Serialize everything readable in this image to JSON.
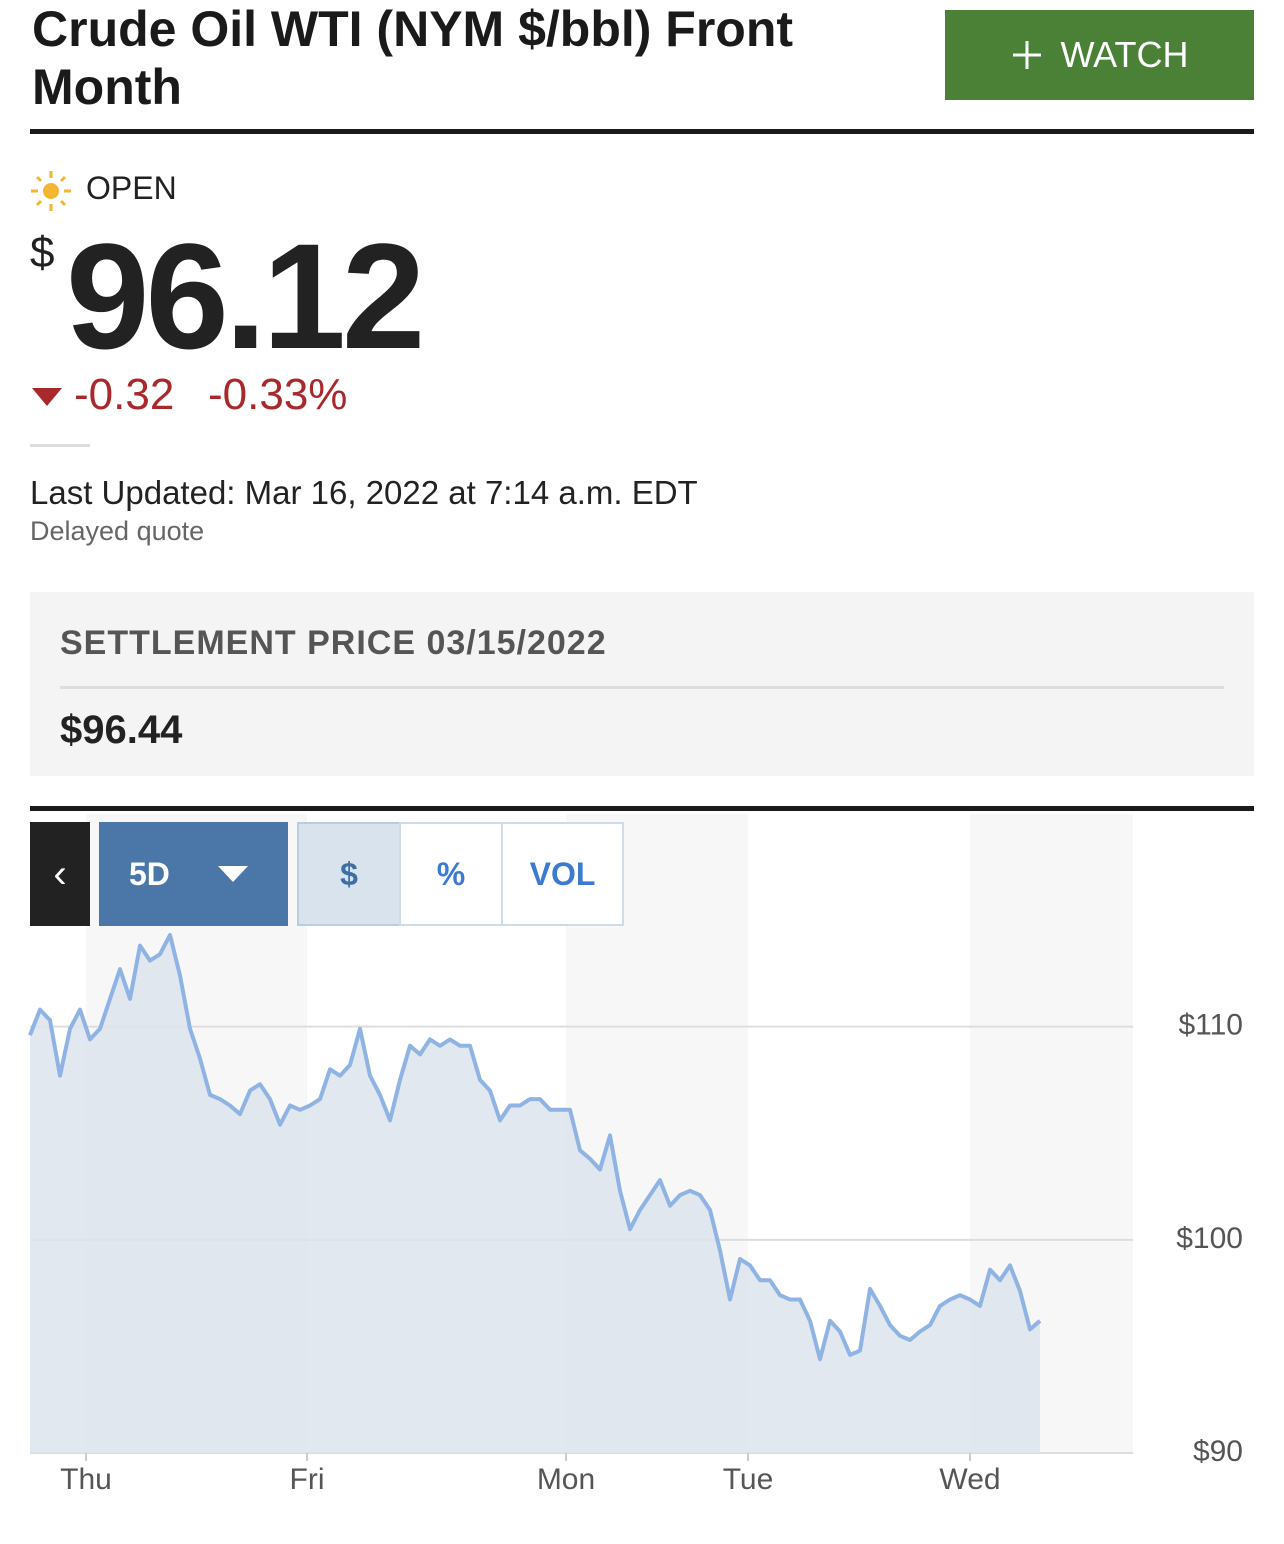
{
  "header": {
    "title": "Crude Oil WTI (NYM $/bbl) Front Month",
    "watch": "WATCH"
  },
  "quote": {
    "status": "OPEN",
    "currency": "$",
    "price": "96.12",
    "change": "-0.32",
    "change_percent": "-0.33%",
    "last_updated": "Last Updated: Mar 16, 2022 at 7:14 a.m. EDT",
    "note": "Delayed quote"
  },
  "settlement": {
    "label": "SETTLEMENT PRICE 03/15/2022",
    "value": "$96.44"
  },
  "controls": {
    "back": "‹",
    "range": "5D",
    "modes": [
      "$",
      "%",
      "VOL"
    ]
  },
  "chart_data": {
    "type": "line",
    "color": "#8fb3e3",
    "area": true,
    "grid": true,
    "x": [
      0,
      1,
      2,
      3,
      4,
      5,
      6,
      7,
      8,
      9,
      10,
      11,
      12,
      13,
      14,
      15,
      16,
      17,
      18,
      19,
      20,
      21,
      22,
      23,
      24,
      25,
      26,
      27,
      28,
      29,
      30,
      31,
      32,
      33,
      34,
      35,
      36,
      37,
      38,
      39,
      40,
      41,
      42,
      43,
      44,
      45,
      46,
      47,
      48,
      49,
      50,
      51,
      52,
      53,
      54,
      55,
      56,
      57,
      58,
      59,
      60,
      61,
      62,
      63,
      64,
      65,
      66,
      67,
      68,
      69,
      70,
      71,
      72,
      73,
      74,
      75,
      76,
      77,
      78,
      79,
      80,
      81,
      82,
      83,
      84,
      85,
      86,
      87,
      88,
      89,
      90,
      91,
      92,
      93,
      94,
      95,
      96,
      97,
      98,
      99,
      100,
      101
    ],
    "values": [
      109.6,
      110.8,
      110.3,
      107.7,
      109.9,
      110.8,
      109.4,
      109.9,
      111.3,
      112.7,
      111.3,
      113.8,
      113.1,
      113.4,
      114.3,
      112.4,
      109.9,
      108.5,
      106.8,
      106.6,
      106.3,
      105.9,
      107.0,
      107.3,
      106.6,
      105.4,
      106.3,
      106.1,
      106.3,
      106.6,
      108.0,
      107.7,
      108.2,
      109.9,
      107.7,
      106.8,
      105.6,
      107.5,
      109.1,
      108.7,
      109.4,
      109.1,
      109.4,
      109.1,
      109.1,
      107.5,
      107.0,
      105.6,
      106.3,
      106.3,
      106.6,
      106.6,
      106.1,
      106.1,
      106.1,
      104.2,
      103.8,
      103.3,
      104.9,
      102.3,
      100.5,
      101.4,
      102.1,
      102.8,
      101.6,
      102.1,
      102.3,
      102.1,
      101.4,
      99.5,
      97.2,
      99.1,
      98.8,
      98.1,
      98.1,
      97.4,
      97.2,
      97.2,
      96.2,
      94.4,
      96.2,
      95.7,
      94.6,
      94.8,
      97.7,
      96.9,
      96.0,
      95.5,
      95.3,
      95.7,
      96.0,
      96.9,
      97.2,
      97.4,
      97.2,
      96.9,
      98.6,
      98.1,
      98.8,
      97.6,
      95.8,
      96.2
    ],
    "xlim": [
      0,
      110.3
    ],
    "xticks": [
      {
        "value": 5.6,
        "label": "Thu"
      },
      {
        "value": 27.7,
        "label": "Fri"
      },
      {
        "value": 53.6,
        "label": "Mon"
      },
      {
        "value": 71.8,
        "label": "Tue"
      },
      {
        "value": 94.0,
        "label": "Wed"
      }
    ],
    "ylim": [
      90,
      119.6
    ],
    "yticks": [
      {
        "value": 90,
        "label": "$90"
      },
      {
        "value": 100,
        "label": "$100"
      },
      {
        "value": 110,
        "label": "$110"
      }
    ]
  }
}
